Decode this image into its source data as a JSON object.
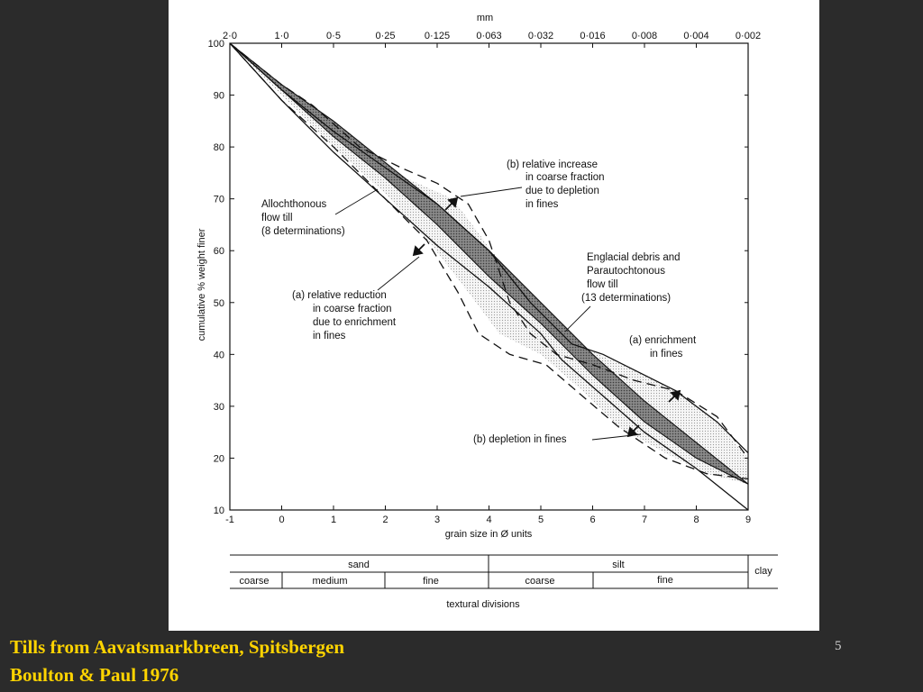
{
  "slide": {
    "caption_line1": "Tills from Aavatsmarkbreen, Spitsbergen",
    "caption_line2": "Boulton & Paul 1976",
    "slide_number": "5"
  },
  "colors": {
    "background": "#2b2b2b",
    "caption": "#ffd400",
    "dark_band": "#6e6e6e",
    "light_band": "#e9e9e9"
  },
  "chart_data": {
    "type": "area",
    "title": "",
    "xlabel": "grain size in Ø units",
    "ylabel": "cumulative % weight finer",
    "top_axis_label": "mm",
    "xlim": [
      -1,
      9
    ],
    "ylim": [
      10,
      100
    ],
    "x_ticks": [
      -1,
      0,
      1,
      2,
      3,
      4,
      5,
      6,
      7,
      8,
      9
    ],
    "y_ticks": [
      10,
      20,
      30,
      40,
      50,
      60,
      70,
      80,
      90,
      100
    ],
    "top_ticks": [
      {
        "phi": -1,
        "label": "2·0"
      },
      {
        "phi": 0,
        "label": "1·0"
      },
      {
        "phi": 1,
        "label": "0·5"
      },
      {
        "phi": 2,
        "label": "0·25"
      },
      {
        "phi": 3,
        "label": "0·125"
      },
      {
        "phi": 4,
        "label": "0·063"
      },
      {
        "phi": 5,
        "label": "0·032"
      },
      {
        "phi": 6,
        "label": "0·016"
      },
      {
        "phi": 7,
        "label": "0·008"
      },
      {
        "phi": 8,
        "label": "0·004"
      },
      {
        "phi": 9,
        "label": "0·002"
      }
    ],
    "grid": false,
    "series": [
      {
        "style": "dark-shaded envelope",
        "upper": [
          [
            -1,
            100
          ],
          [
            0,
            92
          ],
          [
            1,
            85
          ],
          [
            2,
            77
          ],
          [
            3,
            69
          ],
          [
            4,
            60
          ],
          [
            5,
            50
          ],
          [
            6,
            40
          ],
          [
            7,
            31
          ],
          [
            8,
            23
          ],
          [
            9,
            15
          ]
        ],
        "lower": [
          [
            -1,
            100
          ],
          [
            0,
            91
          ],
          [
            1,
            82
          ],
          [
            2,
            74
          ],
          [
            3,
            65
          ],
          [
            4,
            55
          ],
          [
            5,
            46
          ],
          [
            6,
            36
          ],
          [
            7,
            27
          ],
          [
            8,
            20
          ],
          [
            9,
            15
          ]
        ]
      },
      {
        "style": "light-dotted envelope",
        "upper": [
          [
            -1,
            100
          ],
          [
            0,
            91
          ],
          [
            0.6,
            87
          ],
          [
            1.5,
            79
          ],
          [
            2.4,
            74
          ],
          [
            3.3,
            70
          ],
          [
            3.9,
            62
          ],
          [
            4.6,
            52
          ],
          [
            5.3,
            44
          ],
          [
            5.9,
            41
          ],
          [
            6.8,
            37
          ],
          [
            7.6,
            33
          ],
          [
            8.4,
            27
          ],
          [
            9,
            20
          ]
        ],
        "lower": [
          [
            -1,
            100
          ],
          [
            0,
            90
          ],
          [
            1,
            80
          ],
          [
            2,
            71
          ],
          [
            2.9,
            61
          ],
          [
            3.6,
            52
          ],
          [
            4.2,
            44
          ],
          [
            5.0,
            40
          ],
          [
            5.8,
            33
          ],
          [
            6.5,
            26
          ],
          [
            7.4,
            21
          ],
          [
            8.2,
            17
          ],
          [
            9,
            15
          ]
        ]
      },
      {
        "style": "solid outer boundary",
        "points": [
          [
            -1,
            100
          ],
          [
            0,
            91
          ],
          [
            1,
            83
          ],
          [
            2,
            76
          ],
          [
            3,
            69
          ],
          [
            4,
            60
          ],
          [
            4.8,
            50
          ],
          [
            5.6,
            42
          ],
          [
            6.2,
            40
          ],
          [
            6.8,
            37
          ],
          [
            7.6,
            33
          ],
          [
            8.4,
            27
          ],
          [
            9,
            21
          ]
        ]
      },
      {
        "style": "solid outer boundary",
        "points": [
          [
            -1,
            100
          ],
          [
            0,
            89
          ],
          [
            1,
            79
          ],
          [
            2,
            70
          ],
          [
            3,
            61
          ],
          [
            4,
            53
          ],
          [
            5,
            44
          ],
          [
            5.4,
            39
          ],
          [
            6.2,
            32
          ],
          [
            7,
            25
          ],
          [
            8,
            18
          ],
          [
            9,
            10
          ]
        ]
      },
      {
        "style": "dashed boundary",
        "points": [
          [
            -1,
            100
          ],
          [
            0,
            92
          ],
          [
            0.6,
            88
          ],
          [
            1.5,
            80
          ],
          [
            2.3,
            76
          ],
          [
            3.0,
            73
          ],
          [
            3.6,
            69
          ],
          [
            4.0,
            62
          ],
          [
            4.4,
            50
          ],
          [
            4.8,
            44
          ],
          [
            5.3,
            40
          ],
          [
            6.0,
            38
          ],
          [
            6.8,
            35
          ],
          [
            7.6,
            33
          ],
          [
            8.4,
            28
          ],
          [
            9,
            20
          ]
        ]
      },
      {
        "style": "dashed boundary",
        "points": [
          [
            -1,
            100
          ],
          [
            0,
            89
          ],
          [
            1,
            80
          ],
          [
            2,
            70
          ],
          [
            2.8,
            62
          ],
          [
            3.4,
            52
          ],
          [
            3.8,
            44
          ],
          [
            4.4,
            40
          ],
          [
            5.1,
            38
          ],
          [
            5.8,
            32
          ],
          [
            6.5,
            26
          ],
          [
            7.4,
            20
          ],
          [
            8.2,
            17
          ],
          [
            9,
            16
          ]
        ]
      }
    ],
    "annotations": [
      {
        "lines": [
          "Allochthonous",
          "flow till",
          "(8 determinations)"
        ]
      },
      {
        "lines": [
          "(b) relative increase",
          "in coarse fraction",
          "due to depletion",
          "in fines"
        ]
      },
      {
        "lines": [
          "Englacial debris and",
          "Parautochtonous",
          "flow till",
          "(13 determinations)"
        ]
      },
      {
        "lines": [
          "(a) relative reduction",
          "in coarse fraction",
          "due to enrichment",
          "in fines"
        ]
      },
      {
        "lines": [
          "(a) enrichment",
          "in fines"
        ]
      },
      {
        "lines": [
          "(b) depletion in fines"
        ]
      }
    ],
    "textural_divisions": {
      "caption": "textural divisions",
      "major": [
        {
          "label": "sand",
          "from": -1,
          "to": 4
        },
        {
          "label": "silt",
          "from": 4,
          "to": 9
        },
        {
          "label": "clay",
          "from": 9,
          "to": 9.6
        }
      ],
      "minor": [
        {
          "label": "coarse",
          "from": -1,
          "to": 0
        },
        {
          "label": "medium",
          "from": 0,
          "to": 2
        },
        {
          "label": "fine",
          "from": 2,
          "to": 4
        },
        {
          "label": "coarse",
          "from": 4,
          "to": 6
        },
        {
          "label": "fine",
          "from": 6,
          "to": 9
        }
      ]
    }
  }
}
